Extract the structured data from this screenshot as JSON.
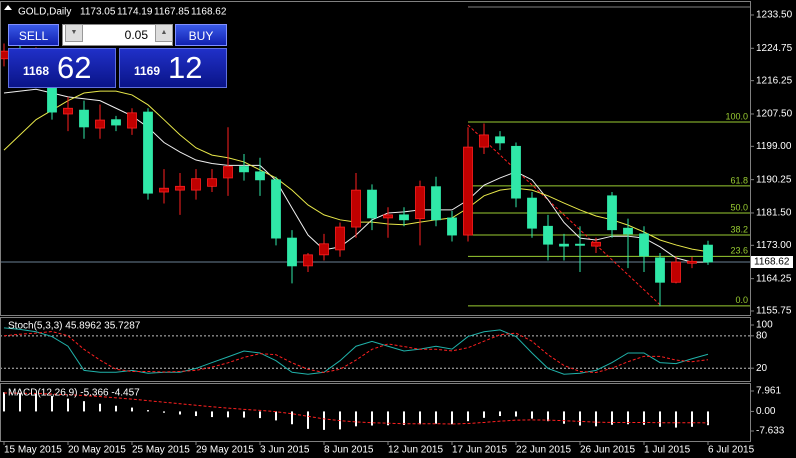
{
  "header": {
    "symbol": "GOLD,Daily",
    "values": [
      1173.05,
      1174.19,
      1167.85,
      1168.62
    ]
  },
  "trade_panel": {
    "sell": "SELL",
    "buy": "BUY",
    "lot": "0.05",
    "bid_prefix": "1168",
    "bid_pips": "62",
    "ask_prefix": "1169",
    "ask_pips": "12"
  },
  "chart_data": [
    {
      "type": "candlestick",
      "categories": [
        "15 May 2015",
        null,
        null,
        null,
        "20 May 2015",
        null,
        null,
        null,
        "25 May 2015",
        null,
        null,
        null,
        "29 May 2015",
        null,
        null,
        null,
        "3 Jun 2015",
        null,
        null,
        null,
        "8 Jun 2015",
        null,
        null,
        null,
        "12 Jun 2015",
        null,
        null,
        null,
        "17 Jun 2015",
        null,
        null,
        null,
        "22 Jun 2015",
        null,
        null,
        null,
        "26 Jun 2015",
        null,
        null,
        null,
        "1 Jul 2015",
        null,
        null,
        null,
        "6 Jul 2015"
      ],
      "open": [
        1222,
        1224,
        1221,
        1214.3,
        1207.5,
        1208.5,
        1203.8,
        1206,
        1203.8,
        1208,
        1187,
        1187.5,
        1187.5,
        1188.5,
        1190.7,
        1193.7,
        1192.3,
        1190.2,
        1174.9,
        1167.6,
        1170.5,
        1171.8,
        1177.8,
        1187.5,
        1180.2,
        1181,
        1180,
        1188.4,
        1180.2,
        1175.7,
        1198.8,
        1201.5,
        1199,
        1185.4,
        1178,
        1173.3,
        1173.3,
        1172.8,
        1186,
        1177.5,
        1176,
        1169.7,
        1163.3,
        1168.3,
        1173.05
      ],
      "high": [
        1226,
        1227,
        1225,
        1216,
        1212,
        1211,
        1210,
        1207,
        1209,
        1209,
        1193,
        1192,
        1193,
        1193,
        1204,
        1197,
        1196,
        1191,
        1177,
        1171,
        1176,
        1179,
        1192,
        1189,
        1183,
        1183,
        1190,
        1191,
        1182,
        1204,
        1205,
        1203,
        1200,
        1187,
        1181,
        1176,
        1178,
        1175,
        1187,
        1180,
        1178,
        1171,
        1170,
        1170,
        1174.19
      ],
      "low": [
        1220,
        1219,
        1218,
        1206,
        1203,
        1201,
        1201,
        1203,
        1202,
        1185,
        1184,
        1181,
        1185,
        1187,
        1186,
        1190,
        1186,
        1173,
        1163,
        1166,
        1169,
        1170,
        1175,
        1177,
        1175,
        1178,
        1173,
        1178,
        1174,
        1174,
        1197,
        1198,
        1183,
        1175,
        1169,
        1169,
        1166,
        1171,
        1175,
        1167,
        1166,
        1157,
        1163,
        1167,
        1167.85
      ],
      "close": [
        1224,
        1221,
        1223,
        1208,
        1209,
        1204.1,
        1205.9,
        1204.6,
        1207.8,
        1186.7,
        1188,
        1188.5,
        1190.5,
        1190.5,
        1193.7,
        1192.3,
        1190.2,
        1174.9,
        1167.6,
        1170.5,
        1173.4,
        1177.8,
        1187.5,
        1180.2,
        1181,
        1179.7,
        1188.4,
        1179.7,
        1175.7,
        1198.8,
        1202,
        1199.9,
        1185.4,
        1177.5,
        1173.3,
        1172.8,
        1173,
        1173.8,
        1177.1,
        1176,
        1170.2,
        1163.3,
        1168.6,
        1168.8,
        1168.62
      ],
      "up_color": "#c00000",
      "down_color": "#30e8a8",
      "series": [
        {
          "color": "#f0f0f0",
          "values": [
            1213,
            1213.5,
            1214,
            1213,
            1212,
            1211.5,
            1211,
            1209,
            1207,
            1204,
            1200,
            1197.5,
            1195.4,
            1194.5,
            1194,
            1194,
            1194,
            1190,
            1182.8,
            1175.7,
            1171.8,
            1172.6,
            1175.7,
            1179.7,
            1181.5,
            1181.8,
            1182.3,
            1182.3,
            1182.3,
            1184.9,
            1188.8,
            1190.7,
            1192.3,
            1190.2,
            1185,
            1179,
            1174.9,
            1174.4,
            1175.4,
            1175.4,
            1174.9,
            1172.6,
            1169.7,
            1168.6,
            1168.6
          ]
        },
        {
          "color": "#e8e84a",
          "values": [
            1198,
            1202,
            1206,
            1208.5,
            1211,
            1213,
            1213.5,
            1213.5,
            1212.5,
            1209.9,
            1206,
            1202,
            1198.6,
            1196.7,
            1196,
            1194.9,
            1192.8,
            1190.7,
            1187.5,
            1183.6,
            1181,
            1179.7,
            1179.1,
            1179.1,
            1178.6,
            1178.4,
            1179.1,
            1179.7,
            1180.2,
            1182.8,
            1186,
            1187.5,
            1188,
            1187.5,
            1186,
            1184.1,
            1182.3,
            1180.7,
            1179.7,
            1178.3,
            1176.5,
            1174.4,
            1173.1,
            1172,
            1171.3
          ]
        }
      ],
      "fibo": {
        "start": 29,
        "color": "#9acd32",
        "levels": [
          {
            "value": 1235.6,
            "label": null
          },
          {
            "value": 1205.4,
            "label": "100.0"
          },
          {
            "value": 1188.6,
            "label": "61.8"
          },
          {
            "value": 1181.5,
            "label": "50.0"
          },
          {
            "value": 1175.7,
            "label": "38.2"
          },
          {
            "value": 1170.1,
            "label": "23.6"
          },
          {
            "value": 1157.1,
            "label": "0.0"
          }
        ]
      },
      "trendline": {
        "x": [
          29,
          41
        ],
        "values": [
          1204.6,
          1157.4
        ],
        "color": "#ff2020"
      },
      "bid": 1168.62,
      "ylim": [
        1154.7,
        1236.91
      ],
      "yticks": [
        {
          "value": 1233.5,
          "label": "1233.50"
        },
        {
          "value": 1224.75,
          "label": "1224.75"
        },
        {
          "value": 1216.25,
          "label": "1216.25"
        },
        {
          "value": 1207.5,
          "label": "1207.50"
        },
        {
          "value": 1199,
          "label": "1199.00"
        },
        {
          "value": 1190.25,
          "label": "1190.25"
        },
        {
          "value": 1181.5,
          "label": "1181.50"
        },
        {
          "value": 1173,
          "label": "1173.00"
        },
        {
          "value": 1164.25,
          "label": "1164.25"
        },
        {
          "value": 1155.75,
          "label": "1155.75"
        }
      ]
    },
    {
      "type": "line",
      "title": "Stoch(5,3,3) 45.8962 35.7287",
      "series": [
        {
          "color": "#20b2aa",
          "values": [
            94.6,
            92,
            87.5,
            78.6,
            60.7,
            16,
            12.5,
            12.5,
            16,
            10.7,
            12.5,
            12.5,
            19.6,
            30.4,
            41,
            51.8,
            48.2,
            33.9,
            12.5,
            8.9,
            12.5,
            33.9,
            60.7,
            69.6,
            60.7,
            51.8,
            55.4,
            60.7,
            55.4,
            78.6,
            87.5,
            91,
            78.6,
            48.2,
            19.6,
            8.9,
            10.7,
            16,
            30.4,
            48.2,
            48.2,
            30.4,
            28.6,
            37.5,
            45.8962
          ]
        },
        {
          "color": "#ff2020",
          "dashed": true,
          "values": [
            80,
            83,
            85,
            88,
            80,
            55,
            35,
            18,
            14,
            14,
            13,
            14,
            16,
            22,
            30,
            40,
            47,
            45,
            30,
            18,
            12,
            18,
            35,
            55,
            65,
            60,
            55,
            55,
            52,
            58,
            70,
            82,
            85,
            70,
            45,
            25,
            14,
            12,
            20,
            32,
            42,
            42,
            35,
            32,
            35.7287
          ]
        }
      ],
      "levels": [
        80,
        20
      ],
      "ylim": [
        -3.7,
        113
      ],
      "yticks": [
        100,
        80,
        20
      ]
    },
    {
      "type": "bar",
      "title": "MACD(12,26,9) -5.366 -4.457",
      "series": [
        {
          "type": "bar",
          "color": "#ffffff",
          "values": [
            7.5,
            7.2,
            6.8,
            6.0,
            5.0,
            4.0,
            3.0,
            2.2,
            1.5,
            0.5,
            -0.5,
            -1.2,
            -1.8,
            -2.2,
            -2.3,
            -2.4,
            -2.6,
            -3.5,
            -5.0,
            -6.8,
            -7.2,
            -7.0,
            -5.8,
            -5.5,
            -5.4,
            -5.3,
            -5.0,
            -4.8,
            -5.0,
            -3.8,
            -2.5,
            -1.8,
            -2.0,
            -2.8,
            -3.8,
            -4.8,
            -5.5,
            -5.8,
            -5.2,
            -5.0,
            -5.2,
            -6.0,
            -6.3,
            -6.0,
            -5.366
          ]
        },
        {
          "type": "line",
          "color": "#ff2020",
          "dashed": true,
          "values": [
            7.2,
            7.1,
            7.0,
            6.8,
            6.5,
            6.2,
            5.8,
            5.3,
            4.8,
            4.2,
            3.6,
            3.0,
            2.4,
            1.8,
            1.3,
            0.8,
            0.4,
            -0.1,
            -0.9,
            -1.9,
            -2.9,
            -3.6,
            -4.1,
            -4.4,
            -4.6,
            -4.8,
            -4.8,
            -4.8,
            -4.9,
            -4.7,
            -4.3,
            -3.8,
            -3.4,
            -3.3,
            -3.4,
            -3.6,
            -3.9,
            -4.2,
            -4.3,
            -4.3,
            -4.3,
            -4.4,
            -4.4,
            -4.4,
            -4.457
          ]
        }
      ],
      "ylim": [
        -11.53,
        10.69
      ],
      "yticks": [
        7.961,
        {
          "value": 0,
          "label": "0.00"
        },
        -7.633
      ]
    }
  ]
}
